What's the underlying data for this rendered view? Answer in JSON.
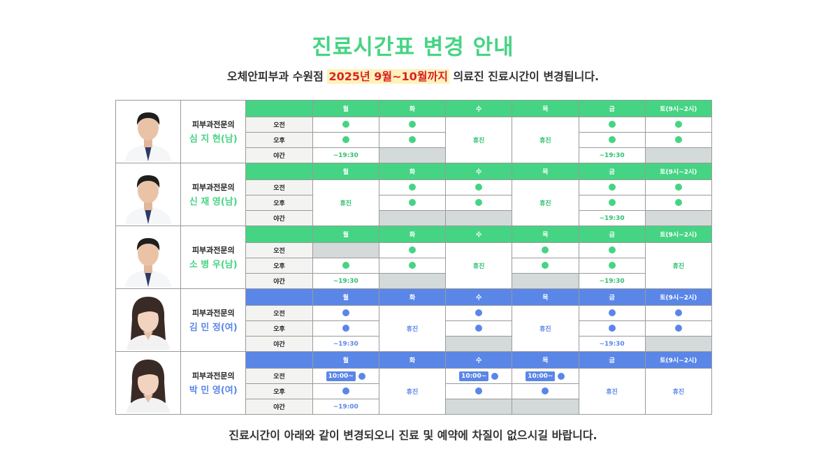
{
  "title": "진료시간표 변경 안내",
  "subtitle": {
    "pre": "오체안피부과 수원점 ",
    "highlight": "2025년 9월~10월까지",
    "post": " 의료진 진료시간이 변경됩니다."
  },
  "footer": "진료시간이 아래와 같이 변경되오니 진료 및 예약에 차질이 없으시길 바랍니다.",
  "days": [
    "월",
    "화",
    "수",
    "목",
    "금",
    "토(9시~2시)"
  ],
  "rows": [
    "오전",
    "오후",
    "야간"
  ],
  "doctors": [
    {
      "role": "피부과전문의",
      "name": "심 지 현(남)",
      "theme": "green",
      "schedule": {
        "오전": [
          "dot",
          "dot",
          "휴진",
          "휴진",
          "dot",
          "dot"
        ],
        "오후": [
          "dot",
          "dot",
          "휴진",
          "휴진",
          "dot",
          "dot"
        ],
        "야간": [
          "~19:30",
          "gray",
          "휴진",
          "휴진",
          "~19:30",
          "gray"
        ]
      }
    },
    {
      "role": "피부과전문의",
      "name": "신 재 영(남)",
      "theme": "green",
      "schedule": {
        "오전": [
          "휴진",
          "dot",
          "dot",
          "휴진",
          "dot",
          "dot"
        ],
        "오후": [
          "휴진",
          "dot",
          "dot",
          "휴진",
          "dot",
          "dot"
        ],
        "야간": [
          "휴진",
          "gray",
          "gray",
          "휴진",
          "~19:30",
          "gray"
        ]
      }
    },
    {
      "role": "피부과전문의",
      "name": "소 병 우(남)",
      "theme": "green",
      "schedule": {
        "오전": [
          "gray",
          "dot",
          "휴진",
          "dot",
          "dot",
          "휴진"
        ],
        "오후": [
          "dot",
          "dot",
          "휴진",
          "dot",
          "dot",
          "휴진"
        ],
        "야간": [
          "~19:30",
          "gray",
          "휴진",
          "gray",
          "~19:30",
          "휴진"
        ]
      }
    },
    {
      "role": "피부과전문의",
      "name": "김 민 정(여)",
      "theme": "blue",
      "schedule": {
        "오전": [
          "dot",
          "휴진",
          "dot",
          "휴진",
          "dot",
          "dot"
        ],
        "오후": [
          "dot",
          "휴진",
          "dot",
          "휴진",
          "dot",
          "dot"
        ],
        "야간": [
          "~19:30",
          "휴진",
          "gray",
          "휴진",
          "~19:30",
          "gray"
        ]
      }
    },
    {
      "role": "피부과전문의",
      "name": "박 민 영(여)",
      "theme": "blue",
      "schedule": {
        "오전": [
          "10:00~",
          "휴진",
          "10:00~",
          "10:00~",
          "휴진",
          "휴진"
        ],
        "오후": [
          "dot",
          "휴진",
          "dot",
          "dot",
          "휴진",
          "휴진"
        ],
        "야간": [
          "~19:00",
          "휴진",
          "gray",
          "gray",
          "휴진",
          "휴진"
        ]
      }
    }
  ],
  "colors": {
    "green": "#45d483",
    "blue": "#5a86e8",
    "gray": "#d4dad9",
    "highlight": "#d8232a"
  }
}
